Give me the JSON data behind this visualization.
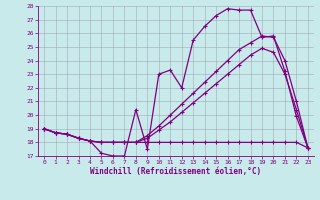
{
  "xlabel": "Windchill (Refroidissement éolien,°C)",
  "bg_color": "#c8eaea",
  "line_color": "#800080",
  "grid_color": "#9999aa",
  "xlim": [
    -0.5,
    23.5
  ],
  "ylim": [
    17,
    28
  ],
  "yticks": [
    17,
    18,
    19,
    20,
    21,
    22,
    23,
    24,
    25,
    26,
    27,
    28
  ],
  "xticks": [
    0,
    1,
    2,
    3,
    4,
    5,
    6,
    7,
    8,
    9,
    10,
    11,
    12,
    13,
    14,
    15,
    16,
    17,
    18,
    19,
    20,
    21,
    22,
    23
  ],
  "line1_x": [
    0,
    1,
    2,
    3,
    4,
    5,
    6,
    7,
    8,
    9,
    10,
    11,
    12,
    13,
    14,
    15,
    16,
    17,
    18,
    19,
    20,
    21,
    22,
    23
  ],
  "line1_y": [
    19.0,
    18.7,
    18.6,
    18.3,
    18.1,
    17.2,
    17.0,
    17.0,
    20.4,
    17.5,
    23.0,
    23.3,
    22.0,
    25.5,
    26.5,
    27.3,
    27.8,
    27.7,
    27.7,
    25.7,
    25.8,
    23.2,
    19.9,
    17.6
  ],
  "line2_x": [
    0,
    1,
    2,
    3,
    4,
    5,
    6,
    7,
    8,
    9,
    10,
    11,
    12,
    13,
    14,
    15,
    16,
    17,
    18,
    19,
    20,
    21,
    22,
    23
  ],
  "line2_y": [
    19.0,
    18.7,
    18.6,
    18.3,
    18.1,
    18.0,
    18.0,
    18.0,
    18.0,
    18.0,
    18.0,
    18.0,
    18.0,
    18.0,
    18.0,
    18.0,
    18.0,
    18.0,
    18.0,
    18.0,
    18.0,
    18.0,
    18.0,
    17.6
  ],
  "line3_x": [
    0,
    1,
    2,
    3,
    4,
    5,
    6,
    7,
    8,
    9,
    10,
    11,
    12,
    13,
    14,
    15,
    16,
    17,
    18,
    19,
    20,
    21,
    22,
    23
  ],
  "line3_y": [
    19.0,
    18.7,
    18.6,
    18.3,
    18.1,
    18.0,
    18.0,
    18.0,
    18.0,
    18.5,
    19.2,
    20.0,
    20.8,
    21.6,
    22.4,
    23.2,
    24.0,
    24.8,
    25.3,
    25.8,
    25.7,
    24.0,
    21.0,
    17.6
  ],
  "line4_x": [
    0,
    1,
    2,
    3,
    4,
    5,
    6,
    7,
    8,
    9,
    10,
    11,
    12,
    13,
    14,
    15,
    16,
    17,
    18,
    19,
    20,
    21,
    22,
    23
  ],
  "line4_y": [
    19.0,
    18.7,
    18.6,
    18.3,
    18.1,
    18.0,
    18.0,
    18.0,
    18.0,
    18.3,
    18.9,
    19.5,
    20.2,
    20.9,
    21.6,
    22.3,
    23.0,
    23.7,
    24.4,
    24.9,
    24.6,
    23.0,
    20.4,
    17.6
  ]
}
